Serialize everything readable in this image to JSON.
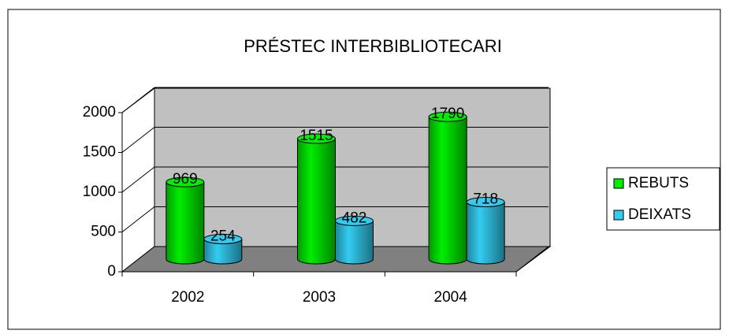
{
  "chart_data": {
    "type": "bar",
    "title": "PRÉSTEC INTERBIBLIOTECARI",
    "categories": [
      "2002",
      "2003",
      "2004"
    ],
    "series": [
      {
        "name": "REBUTS",
        "color": "#00ee00",
        "values": [
          969,
          1515,
          1790
        ]
      },
      {
        "name": "DEIXATS",
        "color": "#33ccf0",
        "values": [
          254,
          482,
          718
        ]
      }
    ],
    "ylim": [
      0,
      2000
    ],
    "yticks": [
      0,
      500,
      1000,
      1500,
      2000
    ],
    "grid": true,
    "legend": "right"
  }
}
